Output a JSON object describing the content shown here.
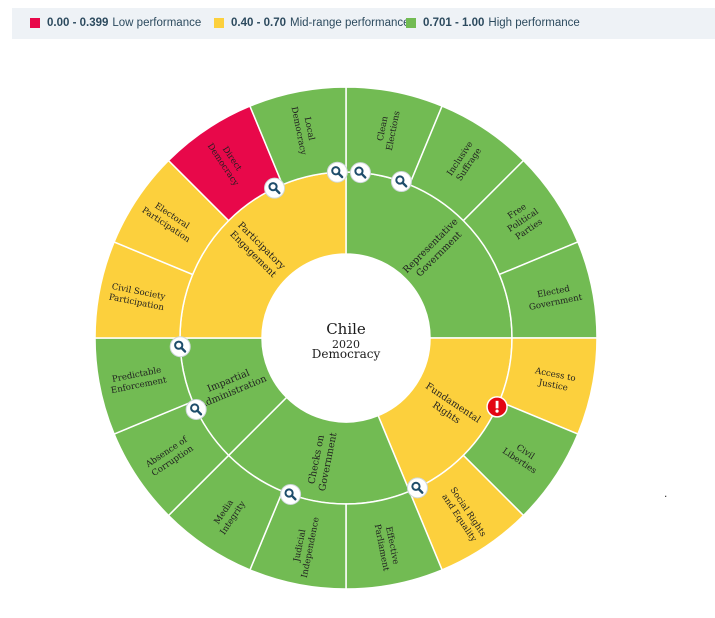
{
  "legend": [
    {
      "range": "0.00 - 0.399",
      "label": "Low performance",
      "color": "#e8084a"
    },
    {
      "range": "0.40 - 0.70",
      "label": "Mid-range performance",
      "color": "#fcd03d"
    },
    {
      "range": "0.701 - 1.00",
      "label": "High performance",
      "color": "#72bb53"
    }
  ],
  "center": {
    "country": "Chile",
    "year": "2020",
    "label": "Democracy"
  },
  "stray_mark": ".",
  "chart_data": {
    "type": "sunburst",
    "colors": {
      "low": "#e8084a",
      "mid": "#fcd03d",
      "high": "#72bb53"
    },
    "categories": [
      {
        "name": [
          "Representative",
          "Government"
        ],
        "band": "high",
        "icon": "magnifier",
        "subattributes": [
          {
            "name": [
              "Clean",
              "Elections"
            ],
            "band": "high",
            "icon": "magnifier"
          },
          {
            "name": [
              "Inclusive",
              "Suffrage"
            ],
            "band": "high"
          },
          {
            "name": [
              "Free",
              "Political",
              "Parties"
            ],
            "band": "high"
          },
          {
            "name": [
              "Elected",
              "Government"
            ],
            "band": "high"
          }
        ]
      },
      {
        "name": [
          "Fundamental",
          "Rights"
        ],
        "band": "mid",
        "subattributes": [
          {
            "name": [
              "Access to",
              "Justice"
            ],
            "band": "mid"
          },
          {
            "name": [
              "Civil",
              "Liberties"
            ],
            "band": "high",
            "icon": "alert"
          },
          {
            "name": [
              "Social Rights",
              "and Equality"
            ],
            "band": "mid",
            "icon": "magnifier"
          }
        ]
      },
      {
        "name": [
          "Checks on",
          "Government"
        ],
        "band": "high",
        "subattributes": [
          {
            "name": [
              "Effective",
              "Parliament"
            ],
            "band": "high"
          },
          {
            "name": [
              "Judicial",
              "Independence"
            ],
            "band": "high",
            "icon": "magnifier"
          },
          {
            "name": [
              "Media",
              "Integrity"
            ],
            "band": "high"
          }
        ]
      },
      {
        "name": [
          "Impartial",
          "Administration"
        ],
        "band": "high",
        "subattributes": [
          {
            "name": [
              "Absence of",
              "Corruption"
            ],
            "band": "high",
            "icon": "magnifier"
          },
          {
            "name": [
              "Predictable",
              "Enforcement"
            ],
            "band": "high",
            "icon": "magnifier"
          }
        ]
      },
      {
        "name": [
          "Participatory",
          "Engagement"
        ],
        "band": "mid",
        "subattributes": [
          {
            "name": [
              "Civil Society",
              "Participation"
            ],
            "band": "mid"
          },
          {
            "name": [
              "Electoral",
              "Participation"
            ],
            "band": "mid"
          },
          {
            "name": [
              "Direct",
              "Democracy"
            ],
            "band": "low",
            "icon": "magnifier"
          },
          {
            "name": [
              "Local",
              "Democracy"
            ],
            "band": "high",
            "icon": "magnifier"
          }
        ]
      }
    ]
  }
}
